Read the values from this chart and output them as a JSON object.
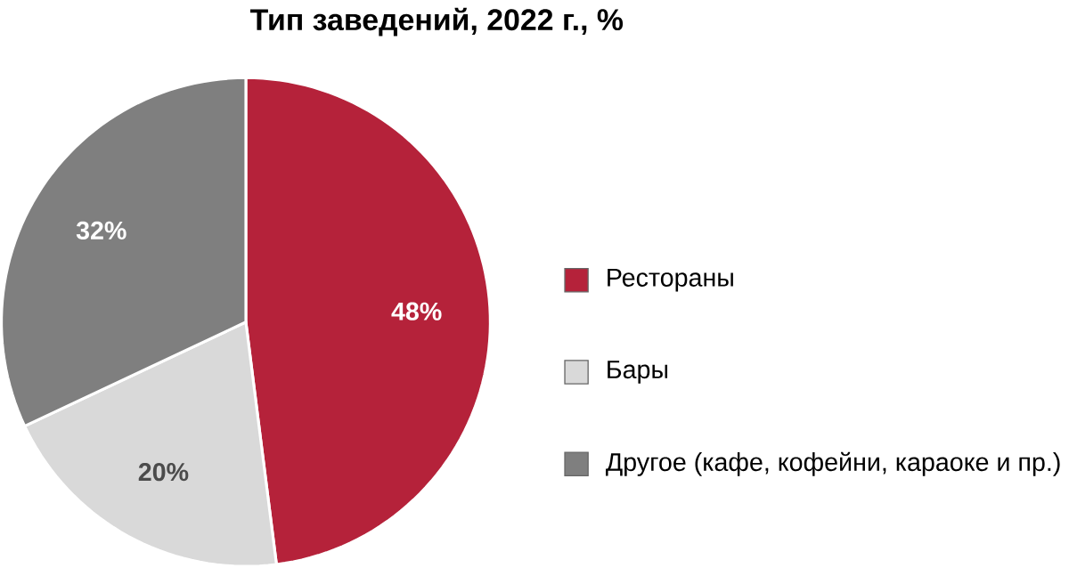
{
  "chart_data": {
    "type": "pie",
    "title": "Тип заведений, 2022 г., %",
    "categories": [
      "Рестораны",
      "Бары",
      "Другое (кафе, кофейни, караоке и пр.)"
    ],
    "values": [
      48,
      20,
      32
    ],
    "colors": [
      "#b5223a",
      "#d9d9d9",
      "#7f7f7f"
    ],
    "value_labels": [
      "48%",
      "20%",
      "32%"
    ],
    "legend": "right"
  }
}
